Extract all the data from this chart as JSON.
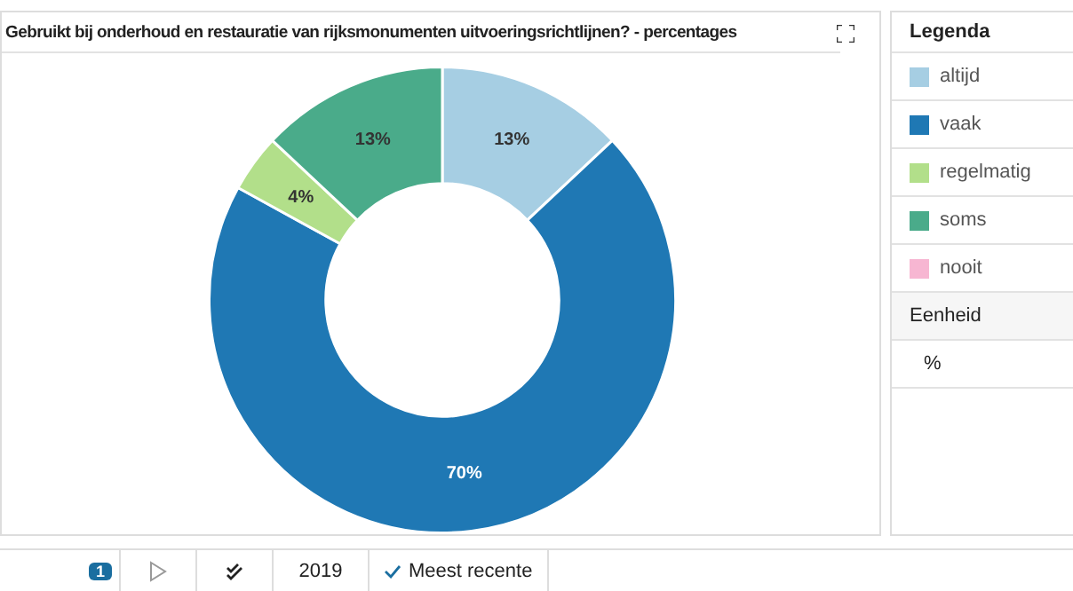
{
  "chart_data": {
    "type": "donut",
    "title": "Gebruikt bij onderhoud en restauratie van rijksmonumenten uitvoeringsrichtlijnen? - percentages",
    "categories": [
      "altijd",
      "vaak",
      "regelmatig",
      "soms",
      "nooit"
    ],
    "values": [
      13,
      70,
      4,
      13,
      0
    ],
    "colors": [
      "#a6cee3",
      "#1f78b4",
      "#b2df8a",
      "#4aab8a",
      "#f7b6d2"
    ],
    "value_labels": [
      "13%",
      "70%",
      "4%",
      "13%",
      null
    ],
    "legend": "right",
    "legend_title": "Legenda",
    "annotations": [
      "Eenheid",
      "%",
      "1",
      "2019",
      "Meest recente"
    ]
  }
}
